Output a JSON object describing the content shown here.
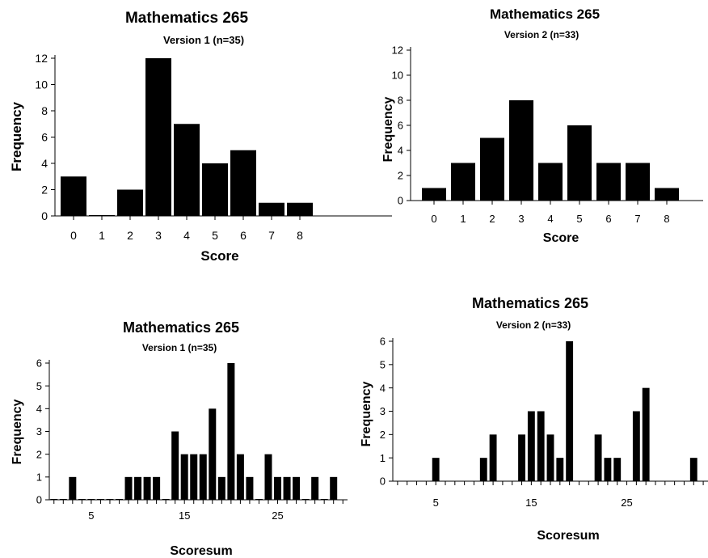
{
  "chart_data": [
    {
      "type": "bar",
      "title": "Mathematics 265",
      "subtitle": "Version 1 (n=35)",
      "xlabel": "Score",
      "ylabel": "Frequency",
      "ylim": [
        0,
        12
      ],
      "yticks": [
        0,
        2,
        4,
        6,
        8,
        10,
        12
      ],
      "categories": [
        "0",
        "1",
        "2",
        "3",
        "4",
        "5",
        "6",
        "7",
        "8"
      ],
      "values": [
        3,
        0,
        2,
        12,
        7,
        4,
        5,
        1,
        1
      ],
      "grid": false
    },
    {
      "type": "bar",
      "title": "Mathematics 265",
      "subtitle": "Version 2 (n=33)",
      "xlabel": "Score",
      "ylabel": "Frequency",
      "ylim": [
        0,
        12
      ],
      "yticks": [
        0,
        2,
        4,
        6,
        8,
        10,
        12
      ],
      "categories": [
        "0",
        "1",
        "2",
        "3",
        "4",
        "5",
        "6",
        "7",
        "8"
      ],
      "values": [
        1,
        3,
        5,
        8,
        3,
        6,
        3,
        3,
        1
      ],
      "grid": false
    },
    {
      "type": "bar",
      "title": "Mathematics 265",
      "subtitle": "Version 1 (n=35)",
      "xlabel": "Scoresum",
      "ylabel": "Frequency",
      "ylim": [
        0,
        6
      ],
      "yticks": [
        0,
        1,
        2,
        3,
        4,
        5,
        6
      ],
      "xticks": [
        5,
        15,
        25
      ],
      "x": [
        1,
        2,
        3,
        4,
        5,
        6,
        7,
        8,
        9,
        10,
        11,
        12,
        13,
        14,
        15,
        16,
        17,
        18,
        19,
        20,
        21,
        22,
        23,
        24,
        25,
        26,
        27,
        28,
        29,
        30,
        31
      ],
      "values": [
        0,
        0,
        1,
        0,
        0,
        0,
        0,
        0,
        1,
        1,
        1,
        1,
        0,
        3,
        2,
        2,
        2,
        4,
        1,
        6,
        2,
        1,
        0,
        2,
        1,
        1,
        1,
        0,
        1,
        0,
        1
      ],
      "grid": false
    },
    {
      "type": "bar",
      "title": "Mathematics 265",
      "subtitle": "Version 2 (n=33)",
      "xlabel": "Scoresum",
      "ylabel": "Frequency",
      "ylim": [
        0,
        6
      ],
      "yticks": [
        0,
        1,
        2,
        3,
        4,
        5,
        6
      ],
      "xticks": [
        5,
        15,
        25
      ],
      "x": [
        5,
        10,
        11,
        14,
        15,
        16,
        17,
        18,
        19,
        22,
        23,
        24,
        26,
        27,
        32
      ],
      "values": [
        1,
        1,
        2,
        2,
        3,
        3,
        2,
        1,
        6,
        2,
        1,
        1,
        3,
        4,
        1
      ],
      "grid": false
    }
  ]
}
